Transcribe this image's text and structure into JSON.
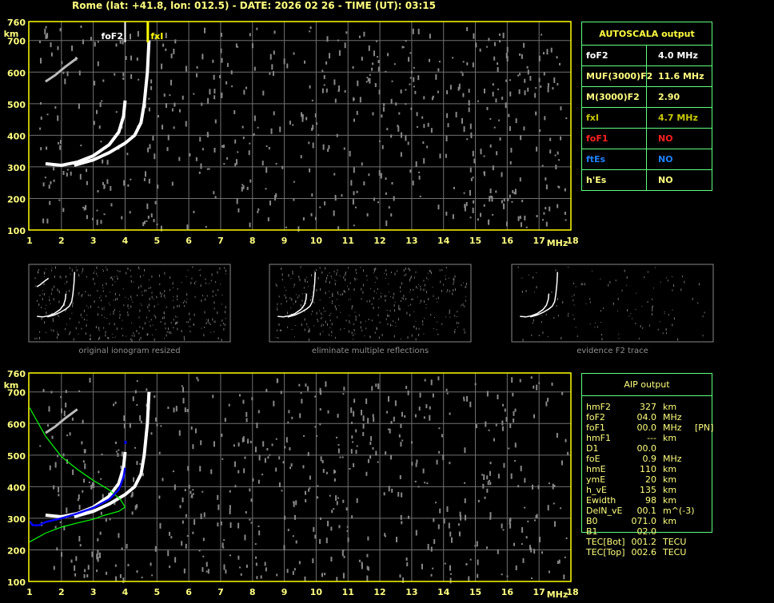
{
  "header": {
    "title": "Rome (lat: +41.8, lon: 012.5) - DATE: 2026 02 26 - TIME (UT): 03:15"
  },
  "chart_data": [
    {
      "type": "scatter",
      "name_panel": "top-ionogram",
      "xlabel": "MHz",
      "ylabel": "km",
      "xlim": [
        1,
        18
      ],
      "ylim": [
        100,
        760
      ],
      "xticks": [
        "1",
        "2",
        "3",
        "4",
        "5",
        "6",
        "7",
        "8",
        "9",
        "10",
        "11",
        "12",
        "13",
        "14",
        "15",
        "16",
        "17",
        "18"
      ],
      "yticks": [
        "100",
        "200",
        "300",
        "400",
        "500",
        "600",
        "700",
        "760"
      ],
      "grid": true,
      "markers": [
        {
          "label": "foF2",
          "x": 4.0,
          "color": "#ffffff"
        },
        {
          "label": "fxI",
          "x": 4.7,
          "color": "#ffff00"
        }
      ],
      "traces": {
        "o_trace": [
          [
            1.5,
            310
          ],
          [
            2,
            305
          ],
          [
            2.5,
            315
          ],
          [
            3,
            335
          ],
          [
            3.5,
            370
          ],
          [
            3.8,
            410
          ],
          [
            3.95,
            460
          ],
          [
            4.0,
            510
          ]
        ],
        "x_trace": [
          [
            2.4,
            305
          ],
          [
            3,
            322
          ],
          [
            3.5,
            345
          ],
          [
            4,
            375
          ],
          [
            4.3,
            400
          ],
          [
            4.5,
            440
          ],
          [
            4.6,
            500
          ],
          [
            4.7,
            600
          ],
          [
            4.75,
            700
          ]
        ],
        "multiple": [
          [
            1.5,
            570
          ],
          [
            1.8,
            590
          ],
          [
            2.1,
            615
          ],
          [
            2.5,
            645
          ]
        ]
      }
    },
    {
      "type": "scatter",
      "name_panel": "bottom-ionogram",
      "xlabel": "MHz",
      "ylabel": "km",
      "xlim": [
        1,
        18
      ],
      "ylim": [
        100,
        760
      ],
      "xticks": [
        "1",
        "2",
        "3",
        "4",
        "5",
        "6",
        "7",
        "8",
        "9",
        "10",
        "11",
        "12",
        "13",
        "14",
        "15",
        "16",
        "17",
        "18"
      ],
      "yticks": [
        "100",
        "200",
        "300",
        "400",
        "500",
        "600",
        "700",
        "760"
      ],
      "grid": true,
      "profile_color": "#00ff00",
      "fit_color": "#0000ff",
      "profile": [
        [
          1,
          650
        ],
        [
          1.5,
          560
        ],
        [
          2,
          495
        ],
        [
          2.5,
          455
        ],
        [
          3,
          420
        ],
        [
          3.5,
          390
        ],
        [
          3.85,
          360
        ],
        [
          4.0,
          335
        ],
        [
          3.8,
          322
        ],
        [
          3.3,
          308
        ],
        [
          3,
          297
        ],
        [
          2.5,
          285
        ],
        [
          2,
          272
        ],
        [
          1.5,
          253
        ],
        [
          1,
          225
        ]
      ],
      "fit": [
        [
          1,
          290
        ],
        [
          1.1,
          278
        ],
        [
          1.3,
          278
        ],
        [
          1.5,
          288
        ],
        [
          2,
          300
        ],
        [
          2.5,
          315
        ],
        [
          3,
          333
        ],
        [
          3.5,
          360
        ],
        [
          3.8,
          390
        ],
        [
          3.95,
          430
        ],
        [
          4,
          460
        ]
      ],
      "fit_extra": [
        [
          4,
          540
        ]
      ]
    }
  ],
  "thumbnails": [
    {
      "caption": "original ionogram resized"
    },
    {
      "caption": "eliminate multiple reflections"
    },
    {
      "caption": "evidence F2 trace"
    }
  ],
  "autoscala": {
    "title": "AUTOSCALA output",
    "rows": [
      {
        "key": "foF2",
        "value": "4.0 MHz",
        "color": "#ffffff"
      },
      {
        "key": "MUF(3000)F2",
        "value": "11.6 MHz",
        "color": "#ffff80"
      },
      {
        "key": "M(3000)F2",
        "value": "2.90",
        "color": "#ffff80"
      },
      {
        "key": "fxI",
        "value": "4.7 MHz",
        "color": "#c8c800"
      },
      {
        "key": "foF1",
        "value": "NO",
        "color": "#ff2020"
      },
      {
        "key": "ftEs",
        "value": "NO",
        "color": "#2080ff"
      },
      {
        "key": "h'Es",
        "value": "NO",
        "color": "#ffff80"
      }
    ]
  },
  "aip": {
    "title": "AIP output",
    "rows": [
      [
        "hmF2",
        "327",
        "km",
        ""
      ],
      [
        "foF2",
        "04.0",
        "MHz",
        ""
      ],
      [
        "foF1",
        "00.0",
        "MHz",
        "[PN]"
      ],
      [
        "hmF1",
        "---",
        "km",
        ""
      ],
      [
        "D1",
        "00.0",
        "",
        ""
      ],
      [
        "foE",
        "0.9",
        "MHz",
        ""
      ],
      [
        "hmE",
        "110",
        "km",
        ""
      ],
      [
        "ymE",
        "20",
        "km",
        ""
      ],
      [
        "h_vE",
        "135",
        "km",
        ""
      ],
      [
        "Ewidth",
        "98",
        "km",
        ""
      ],
      [
        "DelN_vE",
        "00.1",
        "m^(-3)",
        ""
      ],
      [
        "B0",
        "071.0",
        "km",
        ""
      ],
      [
        "B1",
        "02.0",
        "",
        ""
      ],
      [
        "TEC[Bot]",
        "001.2",
        "TECU",
        ""
      ],
      [
        "TEC[Top]",
        "002.6",
        "TECU",
        ""
      ]
    ]
  }
}
